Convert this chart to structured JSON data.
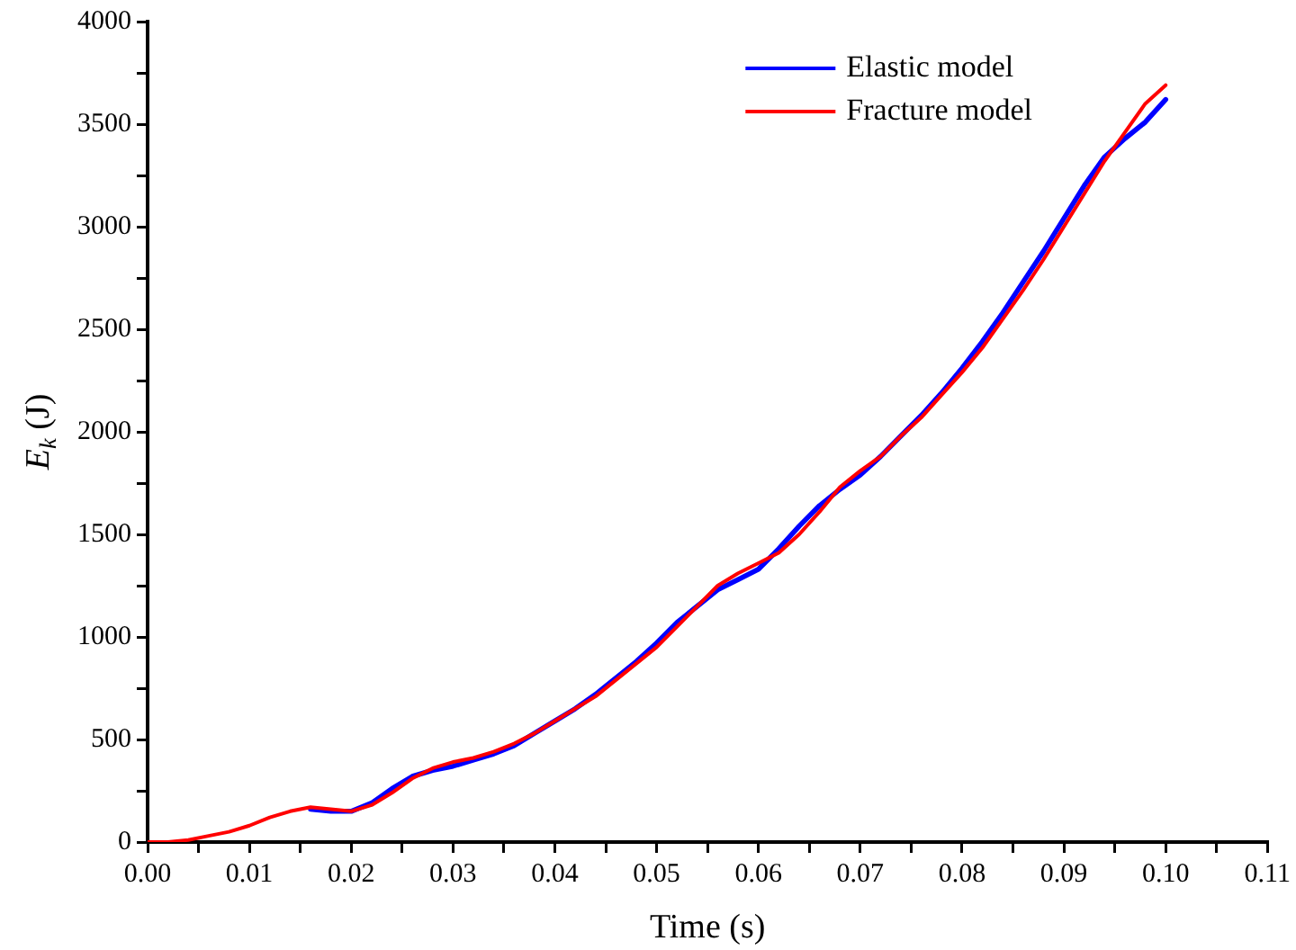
{
  "chart_data": {
    "type": "line",
    "xlabel": "Time (s)",
    "ylabel": "E$_{k}$ (J)",
    "xlim": [
      0,
      0.11
    ],
    "ylim": [
      0,
      4000
    ],
    "xticks": [
      {
        "value": 0,
        "label": "0.00"
      },
      {
        "value": 0.005,
        "label": null
      },
      {
        "value": 0.01,
        "label": "0.01"
      },
      {
        "value": 0.015,
        "label": null
      },
      {
        "value": 0.02,
        "label": "0.02"
      },
      {
        "value": 0.025,
        "label": null
      },
      {
        "value": 0.03,
        "label": "0.03"
      },
      {
        "value": 0.035,
        "label": null
      },
      {
        "value": 0.04,
        "label": "0.04"
      },
      {
        "value": 0.045,
        "label": null
      },
      {
        "value": 0.05,
        "label": "0.05"
      },
      {
        "value": 0.055,
        "label": null
      },
      {
        "value": 0.06,
        "label": "0.06"
      },
      {
        "value": 0.065,
        "label": null
      },
      {
        "value": 0.07,
        "label": "0.07"
      },
      {
        "value": 0.075,
        "label": null
      },
      {
        "value": 0.08,
        "label": "0.08"
      },
      {
        "value": 0.085,
        "label": null
      },
      {
        "value": 0.09,
        "label": "0.09"
      },
      {
        "value": 0.095,
        "label": null
      },
      {
        "value": 0.1,
        "label": "0.10"
      },
      {
        "value": 0.105,
        "label": null
      },
      {
        "value": 0.11,
        "label": "0.11"
      }
    ],
    "yticks": [
      0,
      {
        "value": 250,
        "label": null
      },
      500,
      {
        "value": 750,
        "label": null
      },
      1000,
      {
        "value": 1250,
        "label": null
      },
      1500,
      {
        "value": 1750,
        "label": null
      },
      2000,
      {
        "value": 2250,
        "label": null
      },
      2500,
      {
        "value": 2750,
        "label": null
      },
      3000,
      {
        "value": 3250,
        "label": null
      },
      3500,
      {
        "value": 3750,
        "label": null
      },
      4000
    ],
    "x": [
      0,
      0.002,
      0.004,
      0.006,
      0.008,
      0.01,
      0.012,
      0.014,
      0.016,
      0.018,
      0.02,
      0.022,
      0.024,
      0.026,
      0.028,
      0.03,
      0.032,
      0.034,
      0.036,
      0.038,
      0.04,
      0.042,
      0.044,
      0.046,
      0.048,
      0.05,
      0.052,
      0.054,
      0.056,
      0.058,
      0.06,
      0.062,
      0.064,
      0.066,
      0.068,
      0.07,
      0.072,
      0.074,
      0.076,
      0.078,
      0.08,
      0.082,
      0.084,
      0.086,
      0.088,
      0.09,
      0.092,
      0.094,
      0.096,
      0.098,
      0.1
    ],
    "series": [
      {
        "name": "Elastic model",
        "color": "#0000ff",
        "values": [
          null,
          null,
          null,
          null,
          null,
          null,
          null,
          null,
          160,
          150,
          150,
          190,
          260,
          320,
          350,
          370,
          400,
          430,
          470,
          530,
          590,
          650,
          720,
          800,
          880,
          970,
          1070,
          1150,
          1230,
          1280,
          1330,
          1430,
          1540,
          1640,
          1720,
          1790,
          1880,
          1980,
          2080,
          2190,
          2310,
          2440,
          2580,
          2730,
          2880,
          3040,
          3200,
          3340,
          3430,
          3510,
          3620
        ]
      },
      {
        "name": "Fracture model",
        "color": "#ff0000",
        "values": [
          0,
          0,
          10,
          30,
          50,
          80,
          120,
          150,
          170,
          160,
          150,
          180,
          240,
          310,
          360,
          390,
          410,
          440,
          480,
          530,
          590,
          650,
          710,
          790,
          870,
          950,
          1050,
          1150,
          1250,
          1310,
          1360,
          1410,
          1500,
          1610,
          1730,
          1810,
          1880,
          1980,
          2070,
          2180,
          2290,
          2410,
          2550,
          2690,
          2840,
          3000,
          3160,
          3320,
          3460,
          3600,
          3690
        ]
      }
    ],
    "legend": "top right",
    "marker": "none",
    "line_style": "solid"
  }
}
